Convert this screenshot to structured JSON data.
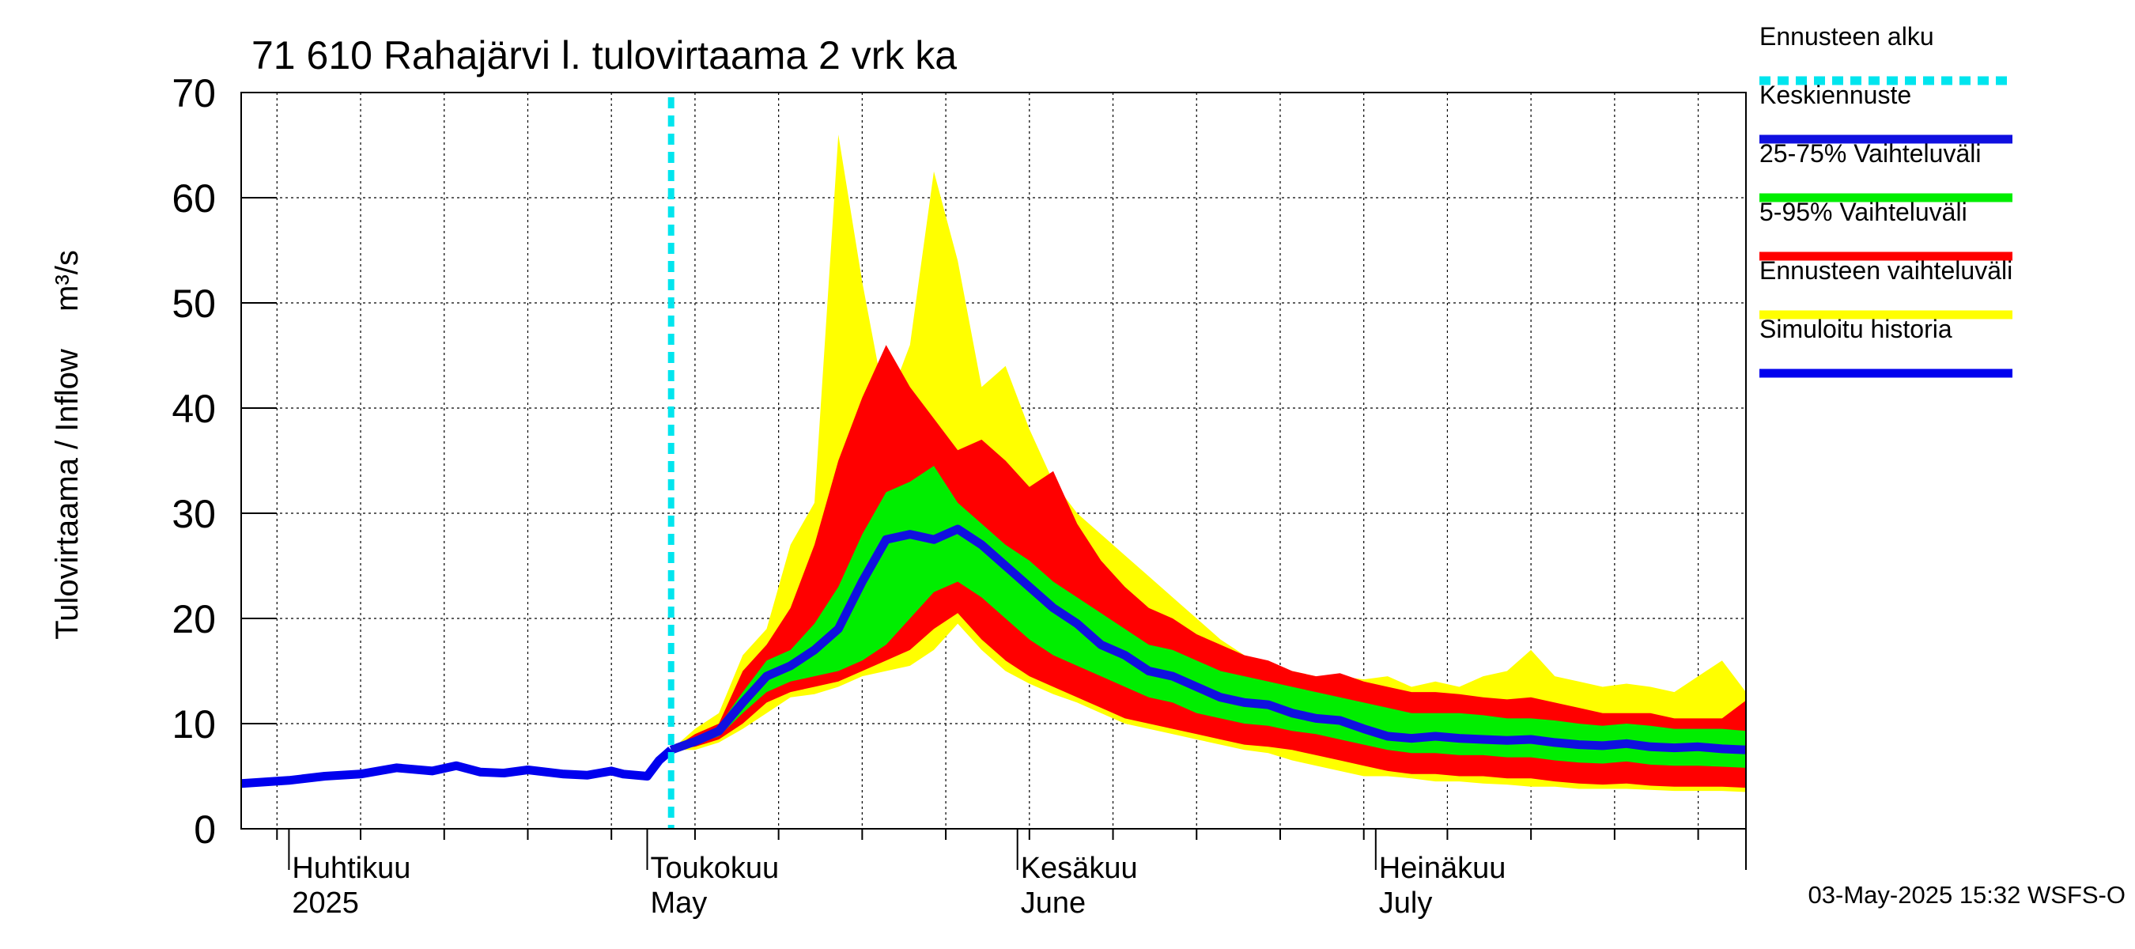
{
  "chart_data": {
    "type": "area",
    "title": "71 610 Rahajärvi l. tulovirtaama 2 vrk ka",
    "ylabel": "Tulovirtaama / Inflow",
    "yunit": "m³/s",
    "ylim": [
      0,
      70
    ],
    "yticks": [
      0,
      10,
      20,
      30,
      40,
      50,
      60,
      70
    ],
    "xlim": [
      "2025-03-28",
      "2025-08-01"
    ],
    "x_month_labels": [
      {
        "date": "2025-04-01",
        "fi": "Huhtikuu",
        "en": "2025"
      },
      {
        "date": "2025-05-01",
        "fi": "Toukokuu",
        "en": "May"
      },
      {
        "date": "2025-06-01",
        "fi": "Kesäkuu",
        "en": "June"
      },
      {
        "date": "2025-07-01",
        "fi": "Heinäkuu",
        "en": "July"
      }
    ],
    "grid": true,
    "legend_position": "right",
    "forecast_start": "2025-05-03",
    "legend": [
      {
        "key": "forecast_start",
        "label": "Ennusteen alku",
        "color": "#00e5ee",
        "dashed": true
      },
      {
        "key": "median",
        "label": "Keskiennuste",
        "color": "#1010e0"
      },
      {
        "key": "p25_75",
        "label": "25-75% Vaihteluväli",
        "color": "#00ee00"
      },
      {
        "key": "p5_95",
        "label": "5-95% Vaihteluväli",
        "color": "#ff0000"
      },
      {
        "key": "range",
        "label": "Ennusteen vaihteluväli",
        "color": "#ffff00"
      },
      {
        "key": "history",
        "label": "Simuloitu historia",
        "color": "#0000ee"
      }
    ],
    "history": {
      "x": [
        "2025-03-28",
        "2025-04-01",
        "2025-04-04",
        "2025-04-07",
        "2025-04-10",
        "2025-04-13",
        "2025-04-15",
        "2025-04-17",
        "2025-04-19",
        "2025-04-21",
        "2025-04-24",
        "2025-04-26",
        "2025-04-28",
        "2025-04-29",
        "2025-05-01",
        "2025-05-02",
        "2025-05-03"
      ],
      "y": [
        4.3,
        4.6,
        5.0,
        5.2,
        5.8,
        5.5,
        6.0,
        5.4,
        5.3,
        5.6,
        5.2,
        5.1,
        5.5,
        5.2,
        5.0,
        6.5,
        7.5
      ]
    },
    "forecast": {
      "x": [
        "2025-05-03",
        "2025-05-05",
        "2025-05-07",
        "2025-05-09",
        "2025-05-11",
        "2025-05-13",
        "2025-05-15",
        "2025-05-17",
        "2025-05-19",
        "2025-05-21",
        "2025-05-23",
        "2025-05-25",
        "2025-05-27",
        "2025-05-29",
        "2025-05-31",
        "2025-06-02",
        "2025-06-04",
        "2025-06-06",
        "2025-06-08",
        "2025-06-10",
        "2025-06-12",
        "2025-06-14",
        "2025-06-16",
        "2025-06-18",
        "2025-06-20",
        "2025-06-22",
        "2025-06-24",
        "2025-06-26",
        "2025-06-28",
        "2025-06-30",
        "2025-07-02",
        "2025-07-04",
        "2025-07-06",
        "2025-07-08",
        "2025-07-10",
        "2025-07-12",
        "2025-07-14",
        "2025-07-16",
        "2025-07-18",
        "2025-07-20",
        "2025-07-22",
        "2025-07-24",
        "2025-07-26",
        "2025-07-28",
        "2025-07-30",
        "2025-08-01"
      ],
      "median": [
        7.5,
        8.3,
        9.3,
        12.0,
        14.5,
        15.5,
        17.0,
        19.0,
        23.5,
        27.5,
        28.0,
        27.5,
        28.5,
        27.0,
        25.0,
        23.0,
        21.0,
        19.5,
        17.5,
        16.5,
        15.0,
        14.5,
        13.5,
        12.5,
        12.0,
        11.8,
        11.0,
        10.5,
        10.3,
        9.5,
        8.8,
        8.6,
        8.8,
        8.6,
        8.5,
        8.4,
        8.5,
        8.2,
        8.0,
        7.9,
        8.1,
        7.8,
        7.7,
        7.8,
        7.6,
        7.5
      ],
      "p25": [
        7.5,
        8.0,
        8.8,
        11.0,
        13.0,
        14.0,
        14.5,
        15.0,
        16.0,
        17.5,
        20.0,
        22.5,
        23.5,
        22.0,
        20.0,
        18.0,
        16.5,
        15.5,
        14.5,
        13.5,
        12.5,
        12.0,
        11.0,
        10.5,
        10.0,
        9.8,
        9.3,
        9.0,
        8.5,
        8.0,
        7.5,
        7.2,
        7.2,
        7.0,
        7.0,
        6.8,
        6.8,
        6.5,
        6.3,
        6.2,
        6.4,
        6.1,
        6.0,
        6.0,
        5.9,
        5.8
      ],
      "p75": [
        7.5,
        8.5,
        9.8,
        13.0,
        16.0,
        17.0,
        19.5,
        23.0,
        28.0,
        32.0,
        33.0,
        34.5,
        31.0,
        29.0,
        27.0,
        25.5,
        23.5,
        22.0,
        20.5,
        19.0,
        17.5,
        17.0,
        16.0,
        15.0,
        14.5,
        14.0,
        13.5,
        13.0,
        12.5,
        12.0,
        11.5,
        11.0,
        11.0,
        11.0,
        10.8,
        10.5,
        10.5,
        10.3,
        10.0,
        9.8,
        10.0,
        9.8,
        9.5,
        9.5,
        9.5,
        9.3
      ],
      "p5": [
        7.5,
        7.8,
        8.5,
        10.0,
        12.0,
        13.0,
        13.5,
        14.0,
        15.0,
        16.0,
        17.0,
        19.0,
        20.5,
        18.0,
        16.0,
        14.5,
        13.5,
        12.5,
        11.5,
        10.5,
        10.0,
        9.5,
        9.0,
        8.5,
        8.0,
        7.8,
        7.5,
        7.0,
        6.5,
        6.0,
        5.5,
        5.2,
        5.2,
        5.0,
        5.0,
        4.8,
        4.8,
        4.5,
        4.3,
        4.2,
        4.3,
        4.1,
        4.0,
        4.0,
        4.0,
        3.9
      ],
      "p95": [
        7.5,
        9.0,
        10.0,
        15.0,
        17.5,
        21.0,
        27.0,
        35.0,
        41.0,
        46.0,
        42.0,
        39.0,
        36.0,
        37.0,
        35.0,
        32.5,
        34.0,
        29.0,
        25.5,
        23.0,
        21.0,
        20.0,
        18.5,
        17.5,
        16.5,
        16.0,
        15.0,
        14.5,
        14.8,
        14.0,
        13.5,
        13.0,
        13.0,
        12.8,
        12.5,
        12.3,
        12.5,
        12.0,
        11.5,
        11.0,
        11.0,
        11.0,
        10.5,
        10.5,
        10.5,
        12.2
      ],
      "min": [
        7.5,
        7.5,
        8.2,
        9.5,
        11.0,
        12.5,
        12.8,
        13.5,
        14.5,
        15.0,
        15.5,
        17.0,
        19.5,
        17.0,
        15.0,
        13.8,
        12.8,
        12.0,
        11.0,
        10.0,
        9.5,
        9.0,
        8.5,
        8.0,
        7.5,
        7.2,
        6.5,
        6.0,
        5.5,
        5.0,
        5.0,
        4.8,
        4.5,
        4.5,
        4.3,
        4.2,
        4.0,
        4.0,
        3.8,
        3.8,
        3.8,
        3.7,
        3.6,
        3.6,
        3.6,
        3.5
      ],
      "max": [
        7.5,
        9.5,
        11.0,
        16.5,
        19.0,
        27.0,
        31.0,
        66.0,
        52.0,
        40.0,
        46.0,
        62.5,
        54.0,
        42.0,
        44.0,
        38.0,
        33.0,
        30.0,
        28.0,
        26.0,
        24.0,
        22.0,
        20.0,
        18.0,
        16.5,
        15.5,
        15.0,
        14.5,
        14.5,
        14.2,
        14.5,
        13.5,
        14.0,
        13.5,
        14.5,
        15.0,
        17.0,
        14.5,
        14.0,
        13.5,
        13.8,
        13.5,
        13.0,
        14.5,
        16.0,
        13.0
      ]
    }
  },
  "footer": {
    "timestamp": "03-May-2025 15:32 WSFS-O"
  }
}
